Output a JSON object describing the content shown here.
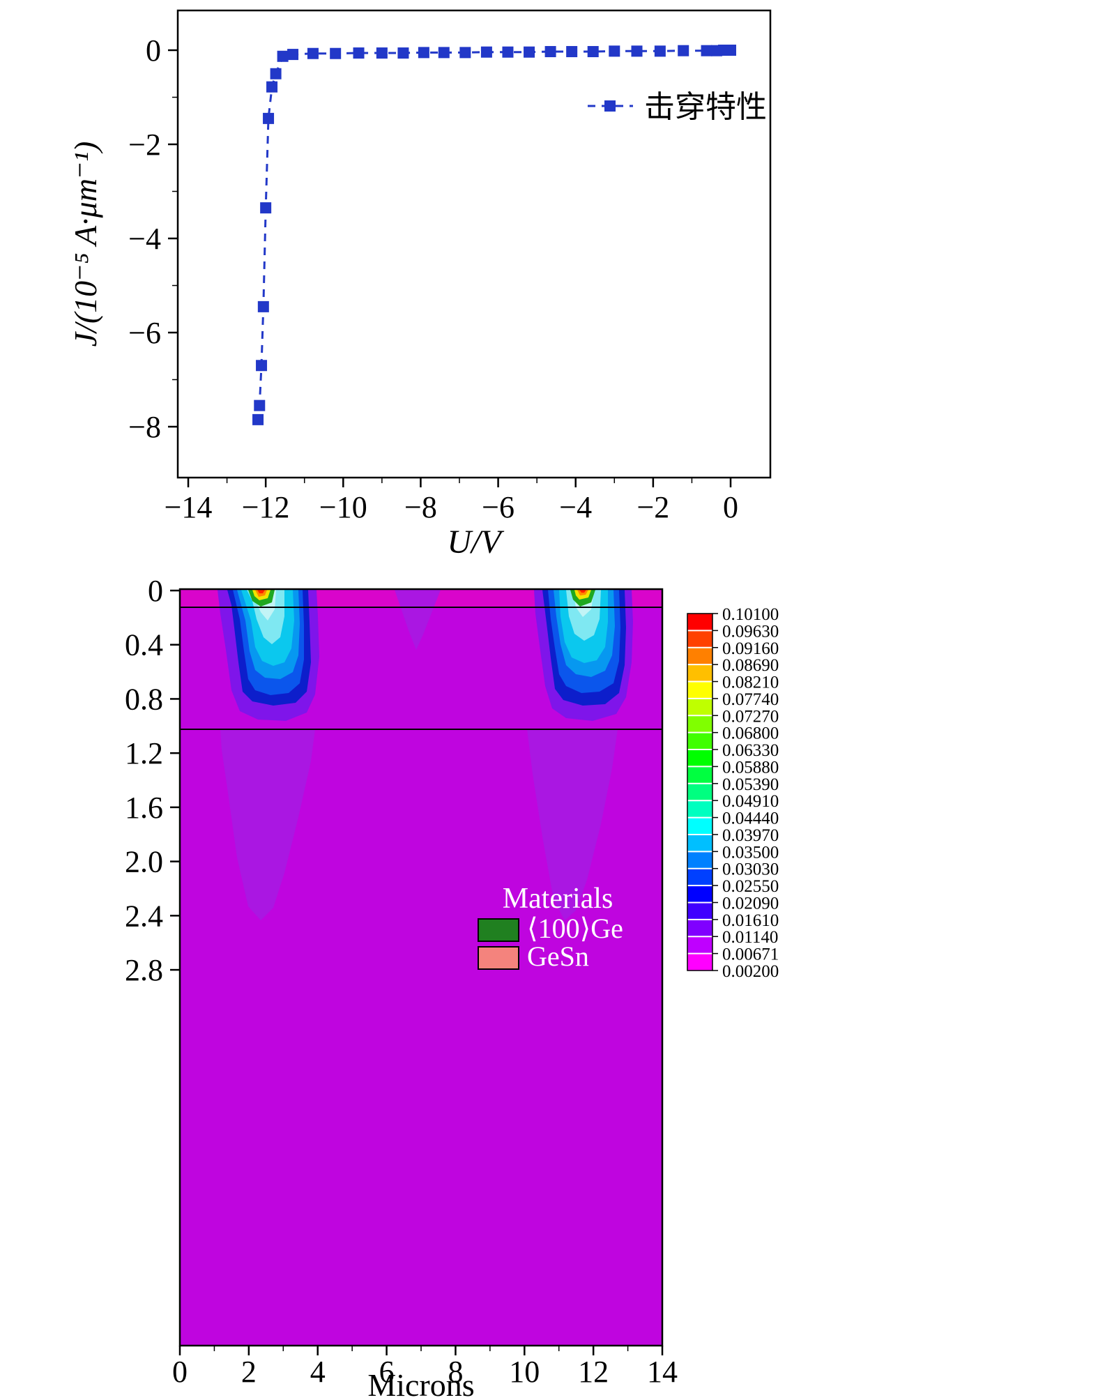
{
  "figure": {
    "background": "#FFFFFF"
  },
  "chart_data": [
    {
      "type": "line",
      "title": "",
      "xlabel": "U/V",
      "ylabel": "J/(10⁻⁵ A·μm⁻¹)",
      "xlim": [
        -14.3,
        1.0
      ],
      "ylim": [
        -9.1,
        0.9
      ],
      "x_ticks": [
        -14,
        -12,
        -10,
        -8,
        -6,
        -4,
        -2,
        0
      ],
      "y_ticks": [
        0,
        -2,
        -4,
        -6,
        -8
      ],
      "legend_position": "upper right",
      "grid": false,
      "series": [
        {
          "name": "击穿特性",
          "color": "#2238C8",
          "marker": "square",
          "line_style": "dashed",
          "x": [
            0.0,
            -0.18,
            -0.36,
            -0.62,
            -1.22,
            -1.82,
            -2.42,
            -3.0,
            -3.55,
            -4.1,
            -4.65,
            -5.2,
            -5.75,
            -6.3,
            -6.85,
            -7.4,
            -7.92,
            -8.45,
            -9.0,
            -9.6,
            -10.2,
            -10.78,
            -11.3,
            -11.56,
            -11.74,
            -11.84,
            -11.93,
            -12.0,
            -12.06,
            -12.11,
            -12.16,
            -12.2
          ],
          "y": [
            0.0,
            0.0,
            -0.01,
            -0.01,
            -0.01,
            -0.02,
            -0.02,
            -0.02,
            -0.03,
            -0.03,
            -0.03,
            -0.04,
            -0.04,
            -0.04,
            -0.05,
            -0.05,
            -0.05,
            -0.06,
            -0.06,
            -0.06,
            -0.07,
            -0.07,
            -0.09,
            -0.13,
            -0.5,
            -0.78,
            -1.45,
            -3.35,
            -5.45,
            -6.7,
            -7.55,
            -7.85
          ]
        }
      ]
    },
    {
      "type": "heatmap",
      "title": "",
      "xlabel": "Microns",
      "x_ticks": [
        0,
        2,
        4,
        6,
        8,
        10,
        12,
        14
      ],
      "y_tick_labels": [
        "0",
        "0.4",
        "0.8",
        "1.2",
        "1.6",
        "2.0",
        "2.4",
        "2.8"
      ],
      "background_color": "#BF05DF",
      "hot_regions_x_microns": [
        2.1,
        11.8
      ],
      "materials": {
        "title": "Materials",
        "items": [
          {
            "label": "⟨100⟩Ge",
            "color": "#208020"
          },
          {
            "label": "GeSn",
            "color": "#F4837D"
          }
        ]
      },
      "colorbar": {
        "values": [
          "0.10100",
          "0.09630",
          "0.09160",
          "0.08690",
          "0.08210",
          "0.07740",
          "0.07270",
          "0.06800",
          "0.06330",
          "0.05880",
          "0.05390",
          "0.04910",
          "0.04440",
          "0.03970",
          "0.03500",
          "0.03030",
          "0.02550",
          "0.02090",
          "0.01610",
          "0.01140",
          "0.00671",
          "0.00200"
        ],
        "colors": [
          "#FF0000",
          "#FF4000",
          "#FF8000",
          "#FFBF00",
          "#FFFF00",
          "#BFFF00",
          "#80FF00",
          "#40FF00",
          "#00FF00",
          "#00FF40",
          "#00FF80",
          "#00FFBF",
          "#00FFFF",
          "#00BFFF",
          "#0080FF",
          "#0040FF",
          "#0000FF",
          "#4000FF",
          "#8000FF",
          "#BF00FF",
          "#FF00FF"
        ]
      }
    }
  ]
}
